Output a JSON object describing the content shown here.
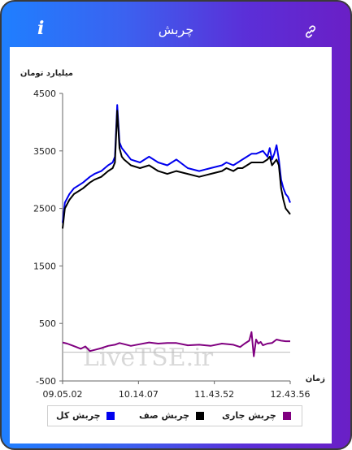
{
  "header": {
    "title": "چربش",
    "info_label": "i"
  },
  "colors": {
    "total": "#0000ee",
    "queue": "#000000",
    "current": "#800080"
  },
  "chart_data": {
    "type": "line",
    "ylabel": "میلیارد تومان",
    "xlabel": "زمان",
    "ylim": [
      -500,
      4500
    ],
    "yticks": [
      -500,
      500,
      1500,
      2500,
      3500,
      4500
    ],
    "x_ticks": [
      "09.05.02",
      "10.14.07",
      "11.43.52",
      "12.43.56"
    ],
    "watermark": "LiveTSE.ir",
    "series": [
      {
        "name": "چربش کل",
        "key": "total",
        "x": [
          0,
          1,
          3,
          5,
          7,
          9,
          12,
          14,
          17,
          20,
          22,
          23,
          24,
          25,
          26,
          27,
          30,
          34,
          38,
          42,
          46,
          50,
          55,
          60,
          65,
          70,
          72,
          75,
          77,
          79,
          81,
          83,
          85,
          88,
          90,
          91,
          92,
          93,
          94,
          95,
          96,
          97,
          98,
          99,
          100
        ],
        "values": [
          2250,
          2600,
          2750,
          2850,
          2900,
          2950,
          3050,
          3100,
          3150,
          3250,
          3300,
          3400,
          4300,
          3650,
          3550,
          3500,
          3350,
          3300,
          3400,
          3300,
          3250,
          3350,
          3200,
          3150,
          3200,
          3250,
          3300,
          3250,
          3300,
          3350,
          3400,
          3450,
          3450,
          3500,
          3400,
          3550,
          3350,
          3450,
          3600,
          3350,
          3000,
          2850,
          2750,
          2700,
          2600
        ]
      },
      {
        "name": "چربش صف",
        "key": "queue",
        "x": [
          0,
          1,
          3,
          5,
          7,
          9,
          12,
          14,
          17,
          20,
          22,
          23,
          24,
          25,
          26,
          27,
          30,
          34,
          38,
          42,
          46,
          50,
          55,
          60,
          65,
          70,
          72,
          75,
          77,
          79,
          81,
          83,
          85,
          88,
          90,
          91,
          92,
          93,
          94,
          95,
          96,
          97,
          98,
          99,
          100
        ],
        "values": [
          2150,
          2500,
          2650,
          2750,
          2800,
          2850,
          2950,
          3000,
          3050,
          3150,
          3200,
          3300,
          4200,
          3550,
          3400,
          3350,
          3250,
          3200,
          3250,
          3150,
          3100,
          3150,
          3100,
          3050,
          3100,
          3150,
          3200,
          3150,
          3200,
          3200,
          3250,
          3300,
          3300,
          3300,
          3350,
          3400,
          3250,
          3300,
          3350,
          3250,
          2850,
          2650,
          2500,
          2450,
          2400
        ]
      },
      {
        "name": "چربش جاری",
        "key": "current",
        "x": [
          0,
          2,
          4,
          6,
          8,
          10,
          12,
          14,
          17,
          20,
          23,
          25,
          27,
          30,
          34,
          38,
          42,
          46,
          50,
          55,
          60,
          65,
          70,
          75,
          78,
          80,
          82,
          83,
          84,
          85,
          86,
          87,
          88,
          90,
          92,
          94,
          96,
          98,
          100
        ],
        "values": [
          170,
          150,
          120,
          90,
          60,
          100,
          20,
          40,
          70,
          110,
          130,
          160,
          140,
          110,
          140,
          170,
          150,
          160,
          160,
          120,
          130,
          110,
          150,
          130,
          90,
          150,
          200,
          350,
          -70,
          220,
          150,
          180,
          120,
          150,
          160,
          220,
          200,
          190,
          190
        ]
      }
    ]
  }
}
